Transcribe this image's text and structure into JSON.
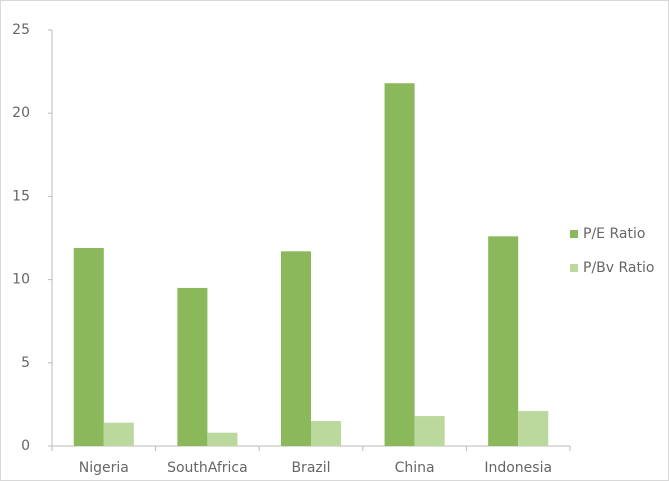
{
  "chart_data": {
    "type": "bar",
    "categories": [
      "Nigeria",
      "SouthAfrica",
      "Brazil",
      "China",
      "Indonesia"
    ],
    "series": [
      {
        "name": "P/E Ratio",
        "color": "#8cb85c",
        "values": [
          11.9,
          9.5,
          11.7,
          21.8,
          12.6
        ]
      },
      {
        "name": "P/Bv Ratio",
        "color": "#bcd99d",
        "values": [
          1.4,
          0.8,
          1.5,
          1.8,
          2.1
        ]
      }
    ],
    "ylim": [
      0,
      25
    ],
    "yticks": [
      0,
      5,
      10,
      15,
      20,
      25
    ],
    "grid": false,
    "legend": "right"
  }
}
